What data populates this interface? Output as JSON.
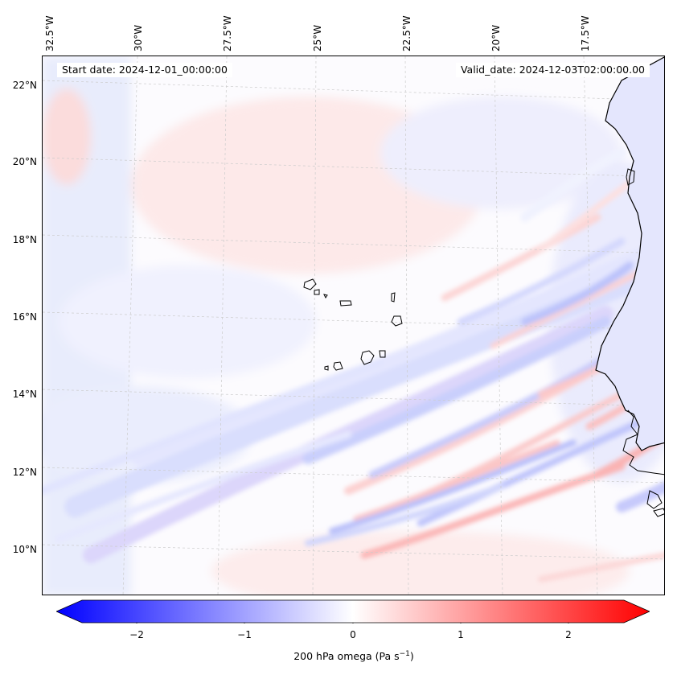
{
  "map": {
    "title_left": "Start date: 2024-12-01_00:00:00",
    "title_right": "Valid_date: 2024-12-03T02:00:00.00",
    "lon_labels": [
      "32.5°W",
      "30°W",
      "27.5°W",
      "25°W",
      "22.5°W",
      "20°W",
      "17.5°W"
    ],
    "lat_labels": [
      "22°N",
      "20°N",
      "18°N",
      "16°N",
      "14°N",
      "12°N",
      "10°N"
    ],
    "variable": "200 hPa omega",
    "units": "Pa s",
    "units_exponent": "−1"
  },
  "colorbar": {
    "ticks": [
      "−2",
      "−1",
      "0",
      "1",
      "2"
    ],
    "min": -2.6,
    "max": 2.6,
    "label_prefix": "200 hPa omega (Pa s",
    "label_exp": "−1",
    "label_suffix": ")",
    "colors": {
      "low": "#0000ff",
      "mid": "#ffffff",
      "high": "#ff0000"
    }
  }
}
